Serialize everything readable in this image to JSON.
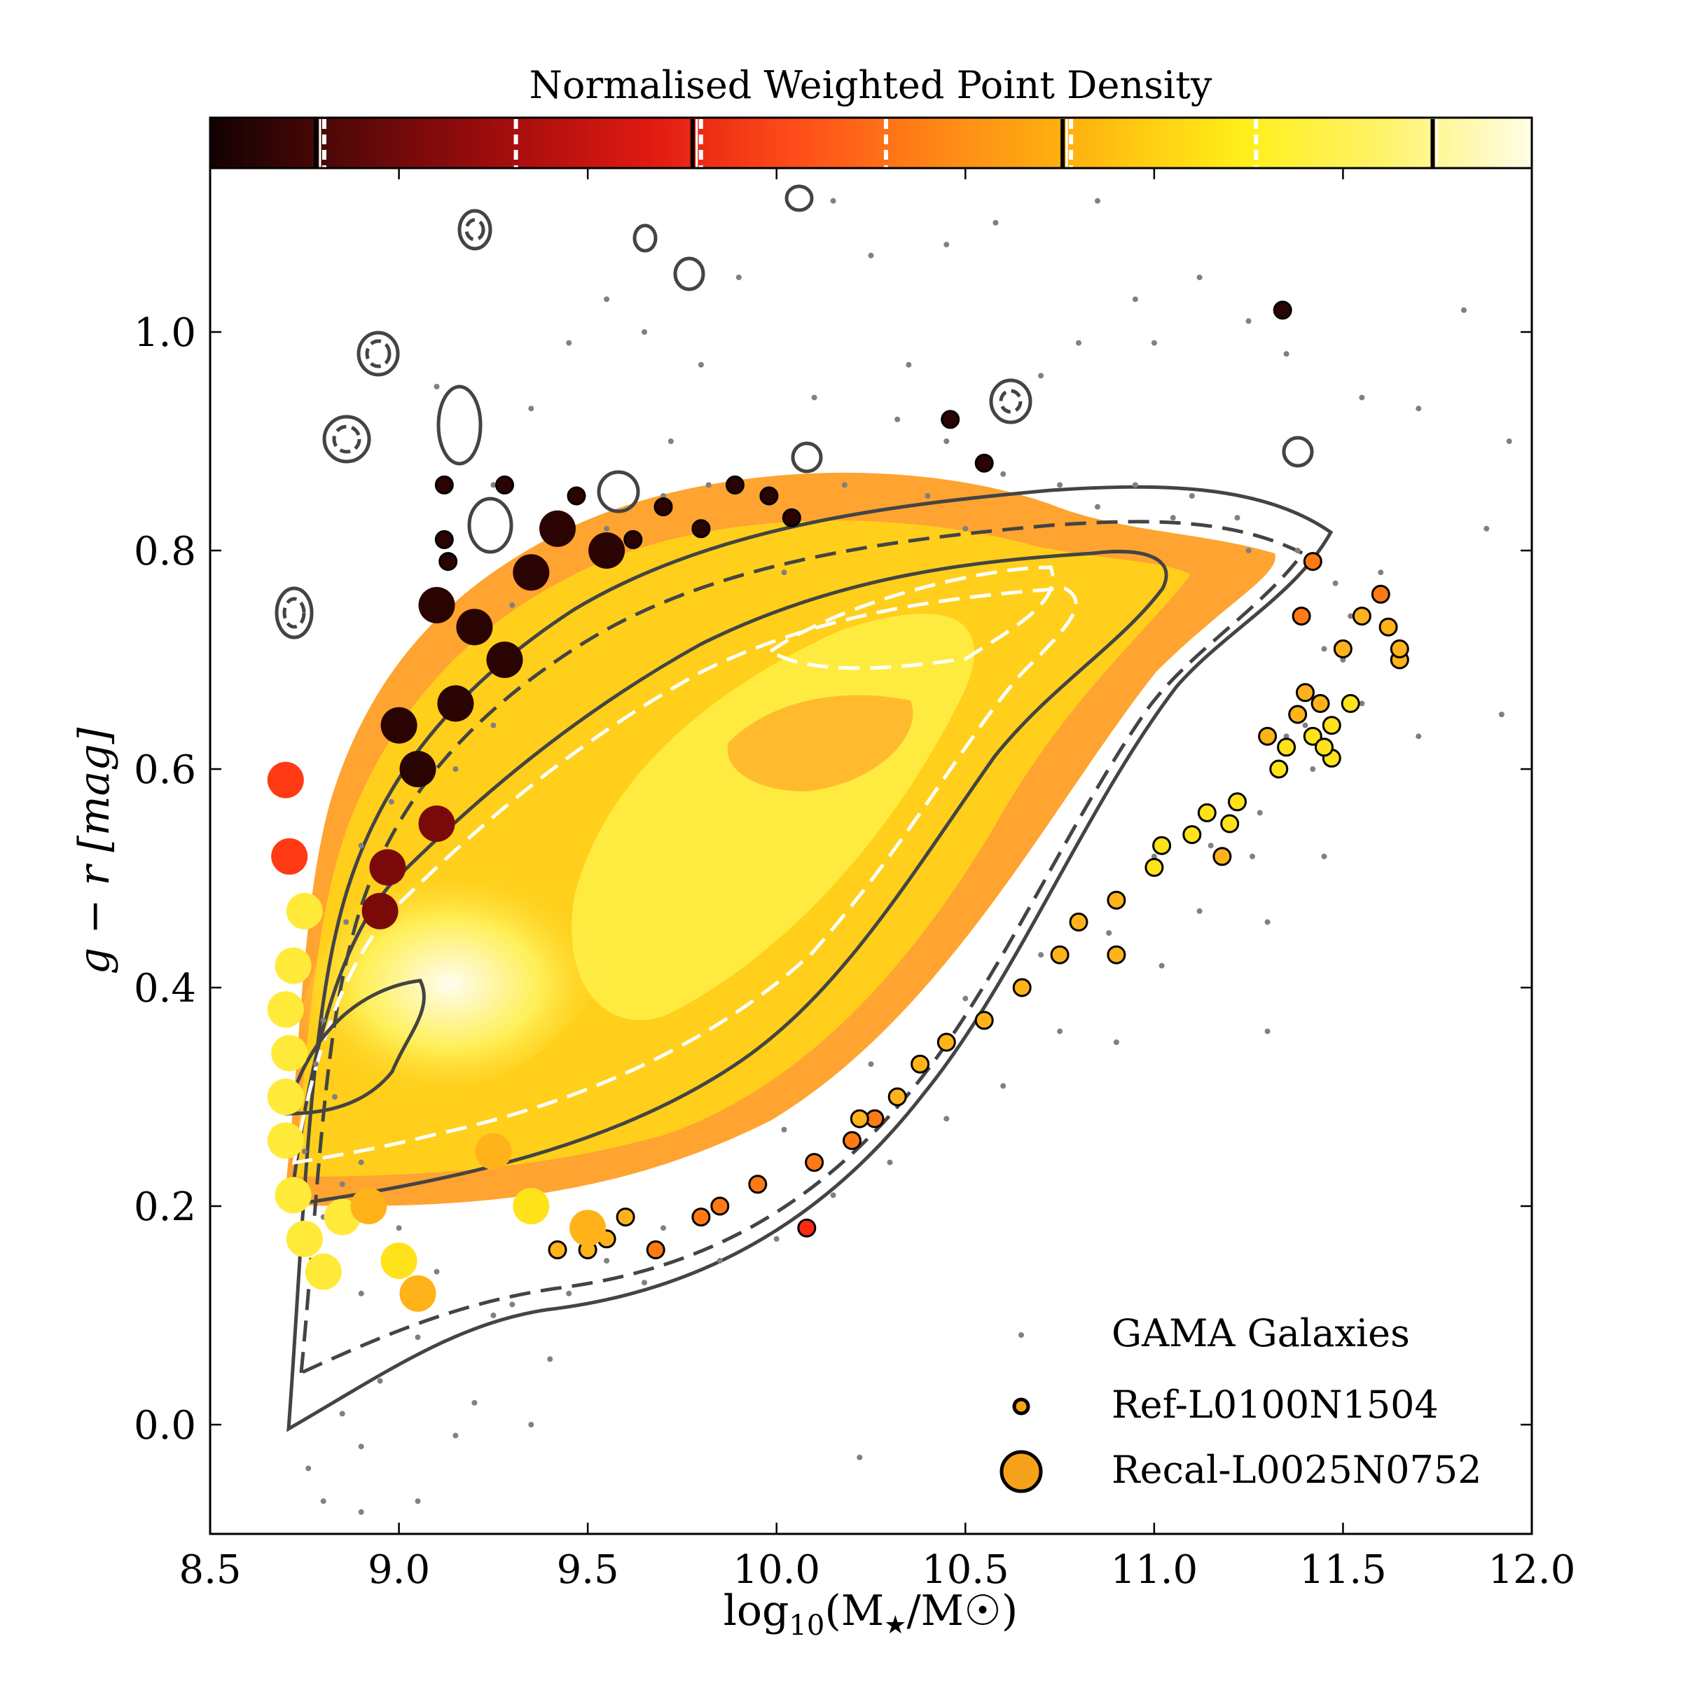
{
  "chart_data": {
    "type": "scatter",
    "title": "",
    "colorbar_title": "Normalised Weighted Point Density",
    "colorbar_stops": [
      "#120202",
      "#5c0808",
      "#a30d0d",
      "#e01a12",
      "#ff4d1a",
      "#ff8a16",
      "#ffb90f",
      "#ffee18",
      "#fff36a",
      "#fffde6"
    ],
    "colorbar_markers": [
      {
        "fraction": 0.08,
        "style": "solid"
      },
      {
        "fraction": 0.08,
        "style": "dashed"
      },
      {
        "fraction": 0.225,
        "style": "dashed"
      },
      {
        "fraction": 0.365,
        "style": "solid"
      },
      {
        "fraction": 0.365,
        "style": "dashed"
      },
      {
        "fraction": 0.505,
        "style": "dashed"
      },
      {
        "fraction": 0.645,
        "style": "solid"
      },
      {
        "fraction": 0.645,
        "style": "dashed"
      },
      {
        "fraction": 0.785,
        "style": "dashed"
      },
      {
        "fraction": 0.925,
        "style": "solid"
      }
    ],
    "xlabel": "log10(M★/M☉)",
    "xlabel_parts": {
      "pre": "log",
      "sub": "10",
      "mid": "(M",
      "sub2": "★",
      "post": "/M☉)"
    },
    "ylabel": "g − r [mag]",
    "xlim": [
      8.5,
      12.0
    ],
    "ylim": [
      -0.1,
      1.15
    ],
    "xticks": [
      8.5,
      9.0,
      9.5,
      10.0,
      10.5,
      11.0,
      11.5,
      12.0
    ],
    "xtick_labels": [
      "8.5",
      "9.0",
      "9.5",
      "10.0",
      "10.5",
      "11.0",
      "11.5",
      "12.0"
    ],
    "yticks": [
      0.0,
      0.2,
      0.4,
      0.6,
      0.8,
      1.0
    ],
    "ytick_labels": [
      "0.0",
      "0.2",
      "0.4",
      "0.6",
      "0.8",
      "1.0"
    ],
    "legend_position": "bottom-right",
    "series": [
      {
        "name": "GAMA Galaxies",
        "marker": "small-dot",
        "color": "#808080",
        "points": [
          [
            8.72,
            0.29
          ],
          [
            8.78,
            0.33
          ],
          [
            8.75,
            0.25
          ],
          [
            8.85,
            0.22
          ],
          [
            8.8,
            0.19
          ],
          [
            8.74,
            0.16
          ],
          [
            8.9,
            0.12
          ],
          [
            9.05,
            0.08
          ],
          [
            8.95,
            0.04
          ],
          [
            9.2,
            0.02
          ],
          [
            9.4,
            0.06
          ],
          [
            8.85,
            0.01
          ],
          [
            8.76,
            -0.04
          ],
          [
            8.8,
            -0.07
          ],
          [
            8.9,
            -0.08
          ],
          [
            9.15,
            -0.01
          ],
          [
            9.3,
            0.11
          ],
          [
            9.55,
            0.15
          ],
          [
            9.7,
            0.18
          ],
          [
            10.02,
            0.27
          ],
          [
            10.25,
            0.33
          ],
          [
            10.5,
            0.39
          ],
          [
            10.7,
            0.43
          ],
          [
            10.88,
            0.45
          ],
          [
            11.0,
            0.52
          ],
          [
            11.15,
            0.53
          ],
          [
            11.28,
            0.56
          ],
          [
            11.42,
            0.6
          ],
          [
            11.55,
            0.66
          ],
          [
            11.7,
            0.63
          ],
          [
            11.92,
            0.65
          ],
          [
            11.88,
            0.82
          ],
          [
            11.94,
            0.9
          ],
          [
            11.82,
            1.02
          ],
          [
            11.7,
            0.93
          ],
          [
            11.55,
            0.94
          ],
          [
            11.35,
            0.98
          ],
          [
            11.25,
            1.01
          ],
          [
            11.0,
            0.99
          ],
          [
            10.95,
            1.03
          ],
          [
            10.8,
            0.99
          ],
          [
            10.7,
            0.96
          ],
          [
            10.45,
            0.9
          ],
          [
            10.35,
            0.97
          ],
          [
            10.32,
            0.92
          ],
          [
            10.1,
            0.94
          ],
          [
            9.8,
            0.97
          ],
          [
            9.65,
            1.0
          ],
          [
            9.55,
            1.03
          ],
          [
            9.45,
            0.99
          ],
          [
            9.35,
            0.93
          ],
          [
            9.25,
            0.86
          ],
          [
            9.1,
            0.95
          ],
          [
            10.45,
            1.08
          ],
          [
            10.58,
            1.1
          ],
          [
            10.85,
            1.12
          ],
          [
            11.12,
            1.05
          ],
          [
            10.25,
            1.07
          ],
          [
            10.15,
            1.12
          ],
          [
            9.9,
            1.05
          ],
          [
            9.72,
            0.9
          ],
          [
            10.02,
            0.78
          ],
          [
            10.5,
            0.82
          ],
          [
            10.85,
            0.84
          ],
          [
            11.05,
            0.83
          ],
          [
            11.25,
            0.8
          ],
          [
            11.48,
            0.77
          ],
          [
            11.5,
            0.7
          ],
          [
            11.4,
            0.64
          ],
          [
            11.35,
            0.63
          ],
          [
            11.26,
            0.52
          ],
          [
            11.3,
            0.46
          ],
          [
            11.12,
            0.47
          ],
          [
            11.02,
            0.42
          ],
          [
            10.9,
            0.35
          ],
          [
            10.75,
            0.36
          ],
          [
            10.6,
            0.31
          ],
          [
            10.45,
            0.28
          ],
          [
            10.3,
            0.24
          ],
          [
            10.15,
            0.21
          ],
          [
            10.0,
            0.17
          ],
          [
            9.85,
            0.15
          ],
          [
            9.65,
            0.13
          ],
          [
            9.45,
            0.12
          ],
          [
            9.25,
            0.1
          ],
          [
            9.1,
            0.14
          ],
          [
            9.0,
            0.18
          ],
          [
            8.9,
            0.24
          ],
          [
            8.83,
            0.3
          ],
          [
            8.8,
            0.37
          ],
          [
            8.86,
            0.46
          ],
          [
            8.9,
            0.53
          ],
          [
            8.98,
            0.57
          ],
          [
            9.08,
            0.55
          ],
          [
            9.0,
            0.5
          ],
          [
            9.15,
            0.6
          ],
          [
            9.25,
            0.64
          ],
          [
            9.3,
            0.75
          ],
          [
            9.38,
            0.78
          ],
          [
            9.55,
            0.82
          ],
          [
            9.7,
            0.85
          ],
          [
            9.82,
            0.86
          ],
          [
            9.98,
            0.85
          ],
          [
            10.18,
            0.86
          ],
          [
            10.4,
            0.85
          ],
          [
            10.6,
            0.87
          ],
          [
            10.75,
            0.86
          ],
          [
            10.95,
            0.86
          ],
          [
            11.1,
            0.85
          ],
          [
            11.22,
            0.83
          ],
          [
            11.38,
            0.8
          ],
          [
            11.6,
            0.78
          ],
          [
            11.52,
            0.74
          ],
          [
            11.45,
            0.71
          ],
          [
            10.22,
            -0.03
          ],
          [
            9.05,
            -0.07
          ],
          [
            8.9,
            -0.02
          ],
          [
            9.35,
            0.0
          ],
          [
            11.3,
            0.36
          ],
          [
            11.45,
            0.52
          ]
        ]
      },
      {
        "name": "Ref-L0100N1504",
        "marker": "small-circle",
        "color": "#f5a11a",
        "edgecolor": "#000000",
        "points": [
          [
            11.34,
            1.02
          ],
          [
            10.46,
            0.92
          ],
          [
            10.55,
            0.88
          ],
          [
            9.89,
            0.86
          ],
          [
            9.28,
            0.86
          ],
          [
            9.12,
            0.86
          ],
          [
            9.47,
            0.85
          ],
          [
            9.98,
            0.85
          ],
          [
            10.04,
            0.83
          ],
          [
            9.7,
            0.84
          ],
          [
            9.62,
            0.81
          ],
          [
            9.8,
            0.82
          ],
          [
            9.13,
            0.79
          ],
          [
            9.12,
            0.81
          ],
          [
            11.42,
            0.79
          ],
          [
            11.39,
            0.74
          ],
          [
            11.55,
            0.74
          ],
          [
            11.6,
            0.76
          ],
          [
            11.62,
            0.73
          ],
          [
            11.65,
            0.7
          ],
          [
            11.5,
            0.71
          ],
          [
            11.38,
            0.65
          ],
          [
            11.4,
            0.67
          ],
          [
            11.44,
            0.66
          ],
          [
            11.52,
            0.66
          ],
          [
            11.47,
            0.64
          ],
          [
            11.42,
            0.63
          ],
          [
            11.35,
            0.62
          ],
          [
            11.3,
            0.63
          ],
          [
            11.33,
            0.6
          ],
          [
            11.47,
            0.61
          ],
          [
            11.22,
            0.57
          ],
          [
            11.14,
            0.56
          ],
          [
            11.1,
            0.54
          ],
          [
            11.2,
            0.55
          ],
          [
            11.18,
            0.52
          ],
          [
            11.02,
            0.53
          ],
          [
            10.9,
            0.48
          ],
          [
            10.8,
            0.46
          ],
          [
            10.75,
            0.43
          ],
          [
            10.65,
            0.4
          ],
          [
            10.55,
            0.37
          ],
          [
            10.45,
            0.35
          ],
          [
            10.38,
            0.33
          ],
          [
            10.32,
            0.3
          ],
          [
            10.26,
            0.28
          ],
          [
            10.2,
            0.26
          ],
          [
            10.1,
            0.24
          ],
          [
            9.95,
            0.22
          ],
          [
            9.85,
            0.2
          ],
          [
            9.8,
            0.19
          ],
          [
            9.68,
            0.16
          ],
          [
            9.6,
            0.19
          ],
          [
            9.55,
            0.17
          ],
          [
            9.5,
            0.16
          ],
          [
            9.42,
            0.16
          ],
          [
            10.08,
            0.18
          ],
          [
            10.22,
            0.28
          ],
          [
            10.9,
            0.43
          ],
          [
            11.0,
            0.51
          ],
          [
            11.45,
            0.62
          ],
          [
            11.65,
            0.71
          ]
        ]
      },
      {
        "name": "Recal-L0025N0752",
        "marker": "large-circle",
        "color": "#f5a11a",
        "edgecolor": "#000000",
        "points": [
          [
            8.7,
            0.59
          ],
          [
            8.71,
            0.52
          ],
          [
            8.75,
            0.47
          ],
          [
            8.72,
            0.42
          ],
          [
            8.7,
            0.38
          ],
          [
            8.71,
            0.34
          ],
          [
            8.7,
            0.3
          ],
          [
            8.7,
            0.26
          ],
          [
            8.72,
            0.21
          ],
          [
            8.75,
            0.17
          ],
          [
            8.8,
            0.14
          ],
          [
            8.85,
            0.19
          ],
          [
            8.92,
            0.2
          ],
          [
            9.0,
            0.15
          ],
          [
            9.05,
            0.12
          ],
          [
            9.1,
            0.55
          ],
          [
            9.05,
            0.6
          ],
          [
            9.15,
            0.66
          ],
          [
            9.0,
            0.64
          ],
          [
            9.42,
            0.82
          ],
          [
            9.55,
            0.8
          ],
          [
            9.35,
            0.78
          ],
          [
            9.2,
            0.73
          ],
          [
            9.28,
            0.7
          ],
          [
            9.1,
            0.75
          ],
          [
            8.97,
            0.51
          ],
          [
            8.95,
            0.47
          ],
          [
            9.25,
            0.25
          ],
          [
            9.35,
            0.2
          ],
          [
            9.5,
            0.18
          ]
        ]
      }
    ]
  },
  "legend": {
    "items": [
      {
        "label": "GAMA Galaxies",
        "marker": "small-dot"
      },
      {
        "label": "Ref-L0100N1504",
        "marker": "small-circle"
      },
      {
        "label": "Recal-L0025N0752",
        "marker": "large-circle"
      }
    ]
  }
}
